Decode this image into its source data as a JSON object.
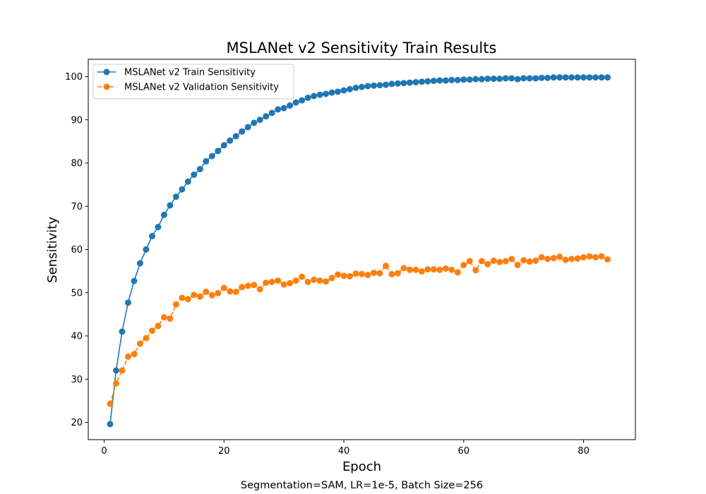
{
  "caption": "Segmentation=SAM, LR=1e-5, Batch Size=256",
  "chart_data": {
    "type": "line",
    "title": "MSLANet v2 Sensitivity Train Results",
    "xlabel": "Epoch",
    "ylabel": "Sensitivity",
    "xlim": [
      -2.65,
      88.65
    ],
    "ylim": [
      16,
      104
    ],
    "xticks": [
      0,
      20,
      40,
      60,
      80
    ],
    "yticks": [
      20,
      30,
      40,
      50,
      60,
      70,
      80,
      90,
      100
    ],
    "grid": false,
    "legend_position": "top-left",
    "x": [
      1,
      2,
      3,
      4,
      5,
      6,
      7,
      8,
      9,
      10,
      11,
      12,
      13,
      14,
      15,
      16,
      17,
      18,
      19,
      20,
      21,
      22,
      23,
      24,
      25,
      26,
      27,
      28,
      29,
      30,
      31,
      32,
      33,
      34,
      35,
      36,
      37,
      38,
      39,
      40,
      41,
      42,
      43,
      44,
      45,
      46,
      47,
      48,
      49,
      50,
      51,
      52,
      53,
      54,
      55,
      56,
      57,
      58,
      59,
      60,
      61,
      62,
      63,
      64,
      65,
      66,
      67,
      68,
      69,
      70,
      71,
      72,
      73,
      74,
      75,
      76,
      77,
      78,
      79,
      80,
      81,
      82,
      83,
      84
    ],
    "series": [
      {
        "name": "MSLANet v2 Train Sensitivity",
        "color": "#1f77b4",
        "line_style": "solid",
        "values": [
          19.6,
          32.0,
          41.0,
          47.7,
          52.7,
          56.8,
          60.0,
          63.1,
          65.2,
          68.0,
          70.2,
          72.2,
          73.9,
          75.7,
          77.3,
          78.6,
          80.4,
          81.6,
          82.8,
          84.1,
          85.2,
          86.2,
          87.3,
          88.3,
          89.3,
          90.0,
          90.8,
          91.6,
          92.4,
          92.7,
          93.3,
          94.0,
          94.5,
          95.1,
          95.5,
          95.8,
          96.0,
          96.3,
          96.5,
          96.8,
          97.1,
          97.4,
          97.6,
          97.8,
          97.9,
          98.0,
          98.1,
          98.3,
          98.4,
          98.5,
          98.6,
          98.7,
          98.8,
          98.9,
          99.0,
          99.1,
          99.1,
          99.2,
          99.2,
          99.3,
          99.3,
          99.4,
          99.4,
          99.5,
          99.5,
          99.5,
          99.6,
          99.6,
          99.4,
          99.6,
          99.6,
          99.6,
          99.7,
          99.7,
          99.8,
          99.8,
          99.8,
          99.8,
          99.8,
          99.8,
          99.8,
          99.8,
          99.8,
          99.8
        ]
      },
      {
        "name": "MSLANet v2 Validation Sensitivity",
        "color": "#ff7f0e",
        "line_style": "dashed",
        "values": [
          24.3,
          29.0,
          32.0,
          35.2,
          35.8,
          38.2,
          39.5,
          41.2,
          42.3,
          44.3,
          44.0,
          47.3,
          48.8,
          48.5,
          49.5,
          49.1,
          50.2,
          49.4,
          49.9,
          51.1,
          50.3,
          50.2,
          51.3,
          51.6,
          51.8,
          50.8,
          52.3,
          52.5,
          52.8,
          51.9,
          52.2,
          52.8,
          53.7,
          52.5,
          53.0,
          52.8,
          52.6,
          53.4,
          54.2,
          53.9,
          53.8,
          54.4,
          54.3,
          54.1,
          54.6,
          54.5,
          56.2,
          54.3,
          54.5,
          55.7,
          55.3,
          55.3,
          54.9,
          55.4,
          55.4,
          55.3,
          55.6,
          55.3,
          54.7,
          56.4,
          57.3,
          55.2,
          57.3,
          56.6,
          57.4,
          57.1,
          57.3,
          57.8,
          56.4,
          57.5,
          57.2,
          57.4,
          58.2,
          57.8,
          58.0,
          58.3,
          57.6,
          57.8,
          57.9,
          58.2,
          58.4,
          58.2,
          58.4,
          57.7
        ]
      }
    ]
  }
}
